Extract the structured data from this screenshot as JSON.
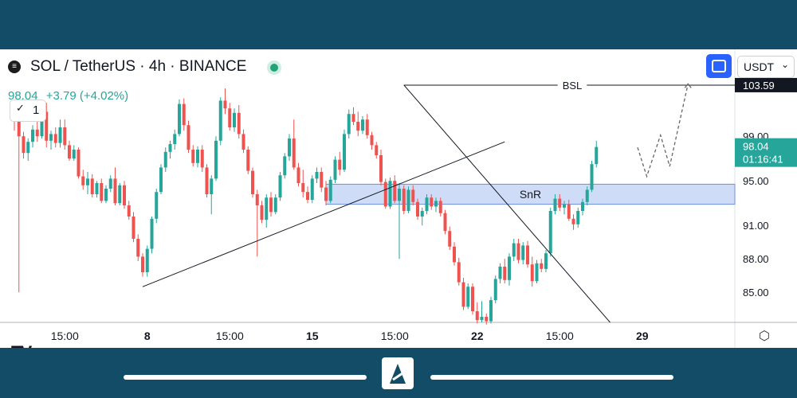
{
  "legend": {
    "symbol_icon": "sol-coin-icon",
    "title": "SOL / TetherUS · 4h · BINANCE",
    "price": "98.04",
    "change": "+3.79 (+4.02%)",
    "collapse_count": "1"
  },
  "controls": {
    "currency": "USDT",
    "fullscreen_icon": "fullscreen-icon",
    "settings_icon": "settings-icon"
  },
  "colors": {
    "up": "#26a69a",
    "down": "#ef5350",
    "accent": "#2962ff",
    "price_tag": "#26a69a",
    "frame": "#124c66"
  },
  "chart_data": {
    "type": "candlestick",
    "symbol": "SOL/USDT",
    "interval": "4h",
    "ylim": [
      82.3,
      106.8
    ],
    "y_ticks": [
      85.0,
      88.0,
      91.0,
      95.0,
      99.0
    ],
    "x_ticks": [
      {
        "i": 11,
        "label": "15:00"
      },
      {
        "i": 29,
        "label": "8"
      },
      {
        "i": 47,
        "label": "15:00"
      },
      {
        "i": 65,
        "label": "15"
      },
      {
        "i": 83,
        "label": "15:00"
      },
      {
        "i": 101,
        "label": "22"
      },
      {
        "i": 119,
        "label": "15:00"
      },
      {
        "i": 137,
        "label": "29"
      }
    ],
    "last_price": "98.04",
    "countdown": "01:16:41",
    "bsl_price": "103.59",
    "bsl_label": "BSL",
    "snr_zone": {
      "label": "SnR",
      "from_i": 68,
      "low": 92.9,
      "high": 94.7
    },
    "candles": [
      [
        101.5,
        102.0,
        99.5,
        100.5
      ],
      [
        100.5,
        101.0,
        85.0,
        99.0
      ],
      [
        99.0,
        99.4,
        97.0,
        97.5
      ],
      [
        97.5,
        98.8,
        96.8,
        98.5
      ],
      [
        98.5,
        100.0,
        98.0,
        99.6
      ],
      [
        99.6,
        100.3,
        98.5,
        99.0
      ],
      [
        99.0,
        101.5,
        98.8,
        101.2
      ],
      [
        101.2,
        102.0,
        98.0,
        98.6
      ],
      [
        98.6,
        99.5,
        97.8,
        99.2
      ],
      [
        99.2,
        99.8,
        98.0,
        98.4
      ],
      [
        98.4,
        100.5,
        98.0,
        99.8
      ],
      [
        99.8,
        100.5,
        97.8,
        98.2
      ],
      [
        98.2,
        98.6,
        96.8,
        97.0
      ],
      [
        97.0,
        98.2,
        96.8,
        97.8
      ],
      [
        97.8,
        98.0,
        95.2,
        95.4
      ],
      [
        95.4,
        96.0,
        94.2,
        94.6
      ],
      [
        94.6,
        95.8,
        93.8,
        95.2
      ],
      [
        95.2,
        95.6,
        93.5,
        93.8
      ],
      [
        93.8,
        95.0,
        93.5,
        94.8
      ],
      [
        94.8,
        95.2,
        93.0,
        93.2
      ],
      [
        93.2,
        94.6,
        93.0,
        94.3
      ],
      [
        94.3,
        95.5,
        94.0,
        95.2
      ],
      [
        95.2,
        96.2,
        92.8,
        93.0
      ],
      [
        93.0,
        94.8,
        92.8,
        94.6
      ],
      [
        94.6,
        95.0,
        92.5,
        92.8
      ],
      [
        92.8,
        93.2,
        91.5,
        91.8
      ],
      [
        91.8,
        92.2,
        89.5,
        89.8
      ],
      [
        89.8,
        90.2,
        87.8,
        88.2
      ],
      [
        88.2,
        88.5,
        86.4,
        86.8
      ],
      [
        86.8,
        89.2,
        86.4,
        88.9
      ],
      [
        88.9,
        91.8,
        88.5,
        91.6
      ],
      [
        91.6,
        94.3,
        91.2,
        94.0
      ],
      [
        94.0,
        96.5,
        93.8,
        96.2
      ],
      [
        96.2,
        98.0,
        95.8,
        97.6
      ],
      [
        97.6,
        98.6,
        97.0,
        98.3
      ],
      [
        98.3,
        99.6,
        97.8,
        99.2
      ],
      [
        99.2,
        102.3,
        99.0,
        101.9
      ],
      [
        101.9,
        102.4,
        99.5,
        100.0
      ],
      [
        100.0,
        100.4,
        97.5,
        97.8
      ],
      [
        97.8,
        98.2,
        96.3,
        96.6
      ],
      [
        96.6,
        98.1,
        96.2,
        97.8
      ],
      [
        97.8,
        98.2,
        95.8,
        96.2
      ],
      [
        96.2,
        96.5,
        93.5,
        93.8
      ],
      [
        93.8,
        95.5,
        92.0,
        95.2
      ],
      [
        95.2,
        99.0,
        95.0,
        98.6
      ],
      [
        98.6,
        102.5,
        98.2,
        102.2
      ],
      [
        102.2,
        103.3,
        101.0,
        101.5
      ],
      [
        101.5,
        102.0,
        99.5,
        99.8
      ],
      [
        99.8,
        101.5,
        99.4,
        101.1
      ],
      [
        101.1,
        101.8,
        98.8,
        99.2
      ],
      [
        99.2,
        99.6,
        97.5,
        97.8
      ],
      [
        97.8,
        98.1,
        95.6,
        95.9
      ],
      [
        95.9,
        96.2,
        93.5,
        93.8
      ],
      [
        93.8,
        94.2,
        88.2,
        92.8
      ],
      [
        92.8,
        93.2,
        91.2,
        91.5
      ],
      [
        91.5,
        93.8,
        90.8,
        93.5
      ],
      [
        93.5,
        94.0,
        91.8,
        92.2
      ],
      [
        92.2,
        93.8,
        92.0,
        93.5
      ],
      [
        93.5,
        95.8,
        93.2,
        95.5
      ],
      [
        95.5,
        97.5,
        95.2,
        97.2
      ],
      [
        97.2,
        99.2,
        96.8,
        98.8
      ],
      [
        98.8,
        100.5,
        96.0,
        96.2
      ],
      [
        96.2,
        96.6,
        94.5,
        94.8
      ],
      [
        94.8,
        96.0,
        93.5,
        94.0
      ],
      [
        94.0,
        94.5,
        93.0,
        93.3
      ],
      [
        93.3,
        95.5,
        93.0,
        95.2
      ],
      [
        95.2,
        96.2,
        94.8,
        95.8
      ],
      [
        95.8,
        96.2,
        94.0,
        94.4
      ],
      [
        94.4,
        95.0,
        92.8,
        93.2
      ],
      [
        93.2,
        95.4,
        93.0,
        95.1
      ],
      [
        95.1,
        97.2,
        94.8,
        96.9
      ],
      [
        96.9,
        97.6,
        95.5,
        96.0
      ],
      [
        96.0,
        99.6,
        95.8,
        99.2
      ],
      [
        99.2,
        101.4,
        98.8,
        101.0
      ],
      [
        101.0,
        101.6,
        100.0,
        100.3
      ],
      [
        100.3,
        101.2,
        99.0,
        99.5
      ],
      [
        99.5,
        100.8,
        99.2,
        100.5
      ],
      [
        100.5,
        101.0,
        98.8,
        99.1
      ],
      [
        99.1,
        99.4,
        97.8,
        98.2
      ],
      [
        98.2,
        98.5,
        97.0,
        97.3
      ],
      [
        97.3,
        97.8,
        94.6,
        94.9
      ],
      [
        94.9,
        95.2,
        92.5,
        92.7
      ],
      [
        92.7,
        95.3,
        92.5,
        95.0
      ],
      [
        95.0,
        95.5,
        93.0,
        93.2
      ],
      [
        93.2,
        94.8,
        88.0,
        94.3
      ],
      [
        94.3,
        94.6,
        92.0,
        92.3
      ],
      [
        92.3,
        94.5,
        92.1,
        94.2
      ],
      [
        94.2,
        94.6,
        92.8,
        93.1
      ],
      [
        93.1,
        93.4,
        91.5,
        91.8
      ],
      [
        91.8,
        92.6,
        91.0,
        92.3
      ],
      [
        92.3,
        93.8,
        92.0,
        93.5
      ],
      [
        93.5,
        93.8,
        92.4,
        92.7
      ],
      [
        92.7,
        93.5,
        92.2,
        93.2
      ],
      [
        93.2,
        93.5,
        91.8,
        92.1
      ],
      [
        92.1,
        92.4,
        90.2,
        90.5
      ],
      [
        90.5,
        90.9,
        88.8,
        89.1
      ],
      [
        89.1,
        89.5,
        87.4,
        87.7
      ],
      [
        87.7,
        88.1,
        85.6,
        85.9
      ],
      [
        85.9,
        86.3,
        83.4,
        83.7
      ],
      [
        83.7,
        85.8,
        83.5,
        85.5
      ],
      [
        85.5,
        85.8,
        83.0,
        83.3
      ],
      [
        83.3,
        84.1,
        82.2,
        82.5
      ],
      [
        82.5,
        84.2,
        82.3,
        82.8
      ],
      [
        82.8,
        83.1,
        82.1,
        82.4
      ],
      [
        82.4,
        84.6,
        82.2,
        84.3
      ],
      [
        84.3,
        86.5,
        84.0,
        86.2
      ],
      [
        86.2,
        87.6,
        85.8,
        87.3
      ],
      [
        87.3,
        88.0,
        85.8,
        86.1
      ],
      [
        86.1,
        88.5,
        85.6,
        88.2
      ],
      [
        88.2,
        89.8,
        87.8,
        89.4
      ],
      [
        89.4,
        89.8,
        87.6,
        87.9
      ],
      [
        87.9,
        89.5,
        87.5,
        89.2
      ],
      [
        89.2,
        89.6,
        87.2,
        87.5
      ],
      [
        87.5,
        88.2,
        85.5,
        86.0
      ],
      [
        86.0,
        87.9,
        85.8,
        87.6
      ],
      [
        87.6,
        88.0,
        86.8,
        87.1
      ],
      [
        87.1,
        88.8,
        86.8,
        88.5
      ],
      [
        88.5,
        92.6,
        88.2,
        92.3
      ],
      [
        92.3,
        93.8,
        92.0,
        93.4
      ],
      [
        93.4,
        93.8,
        92.3,
        92.6
      ],
      [
        92.6,
        93.2,
        92.0,
        92.9
      ],
      [
        92.9,
        93.3,
        91.4,
        91.6
      ],
      [
        91.6,
        92.0,
        90.6,
        91.1
      ],
      [
        91.1,
        92.6,
        90.8,
        92.3
      ],
      [
        92.3,
        93.4,
        91.9,
        93.1
      ],
      [
        93.1,
        94.5,
        92.8,
        94.2
      ],
      [
        94.2,
        96.8,
        94.0,
        96.5
      ],
      [
        96.5,
        98.6,
        96.2,
        98.04
      ]
    ],
    "projection": [
      {
        "i": 136,
        "p": 98.0
      },
      {
        "i": 138,
        "p": 95.4
      },
      {
        "i": 141,
        "p": 99.1
      },
      {
        "i": 143,
        "p": 96.3
      },
      {
        "i": 147,
        "p": 103.7
      }
    ],
    "trendlines": [
      {
        "from": {
          "i": 28,
          "p": 85.5
        },
        "to": {
          "i": 107,
          "p": 98.5
        }
      },
      {
        "from": {
          "i": 85,
          "p": 103.6
        },
        "to": {
          "i": 130,
          "p": 82.3
        }
      }
    ]
  }
}
